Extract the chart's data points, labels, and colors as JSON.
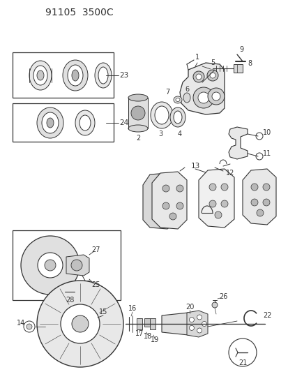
{
  "title": "91105  3500C",
  "bg_color": "#ffffff",
  "lc": "#333333",
  "fig_width": 4.13,
  "fig_height": 5.33,
  "dpi": 100
}
